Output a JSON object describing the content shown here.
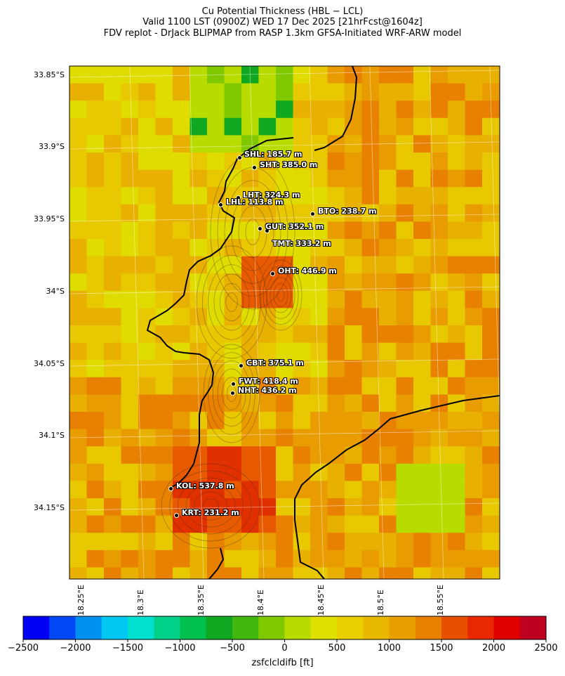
{
  "title_lines": [
    "Cu Potential Thickness (HBL − LCL)",
    "Valid 1100 LST (0900Z) WED 17 Dec 2025 [21hrFcst@1604z]",
    "FDV replot - DrJack BLIPMAP from RASP 1.3km GFSA-Initiated WRF-ARW model"
  ],
  "lat_labels": [
    "33.85°S",
    "33.9°S",
    "33.95°S",
    "34°S",
    "34.05°S",
    "34.1°S",
    "34.15°S"
  ],
  "lon_labels": [
    "18.25°E",
    "18.3°E",
    "18.35°E",
    "18.4°E",
    "18.45°E",
    "18.5°E",
    "18.55°E"
  ],
  "stations": [
    {
      "label": "SHL: 185.7 m",
      "color": "#000"
    },
    {
      "label": "SHT: 385.0 m",
      "color": "#000"
    },
    {
      "label": "LHT: 324.3 m",
      "color": "#000"
    },
    {
      "label": "LHL: 113.8 m",
      "color": "#000"
    },
    {
      "label": "BTO: 238.7 m",
      "color": "#000"
    },
    {
      "label": "GUT: 352.1 m",
      "color": "#000"
    },
    {
      "label": "TMT: 333.2 m",
      "color": "#000"
    },
    {
      "label": "OHT: 446.9 m",
      "color": "#000"
    },
    {
      "label": "CBT: 375.1 m",
      "color": "#000"
    },
    {
      "label": "FWT: 418.4 m",
      "color": "#000"
    },
    {
      "label": "NHT: 436.2 m",
      "color": "#000"
    },
    {
      "label": "KOL: 537.8 m",
      "color": "#000"
    },
    {
      "label": "KRT: 231.2 m",
      "color": "#000"
    }
  ],
  "colorbar": {
    "label": "zsfclcldifb [ft]",
    "ticks": [
      "−2500",
      "−2000",
      "−1500",
      "−1000",
      "−500",
      "0",
      "500",
      "1000",
      "1500",
      "2000",
      "2500"
    ],
    "colors": [
      "#0000f5",
      "#0048f5",
      "#0090f0",
      "#00c8f0",
      "#00e0d0",
      "#00d088",
      "#00c050",
      "#10a820",
      "#40b810",
      "#80c800",
      "#b8dc00",
      "#e0e000",
      "#e8d000",
      "#e8b800",
      "#e8a000",
      "#e88000",
      "#e85000",
      "#e82800",
      "#e00000",
      "#c00020"
    ]
  },
  "legend_colors": {
    "ocean_land_palette": "#e8b000",
    "coast": "#000000"
  }
}
